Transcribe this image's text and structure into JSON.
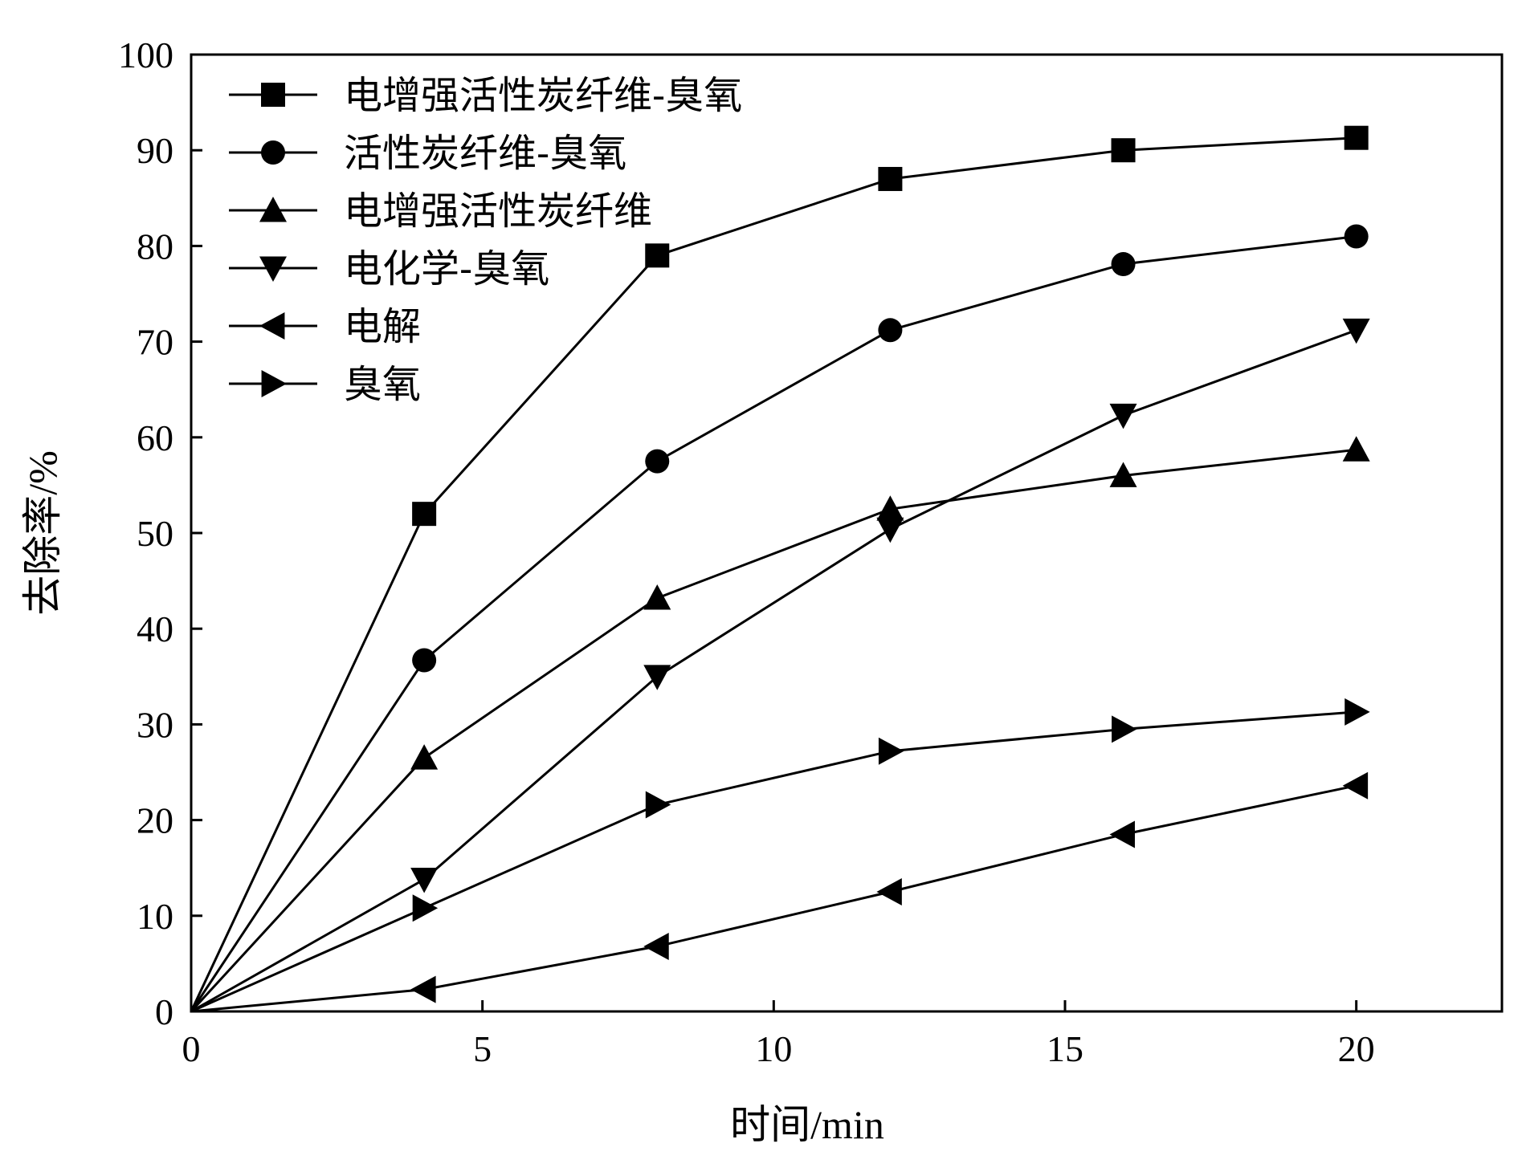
{
  "chart_data": {
    "type": "line",
    "xlabel": "时间/min",
    "ylabel": "去除率/%",
    "xlim": [
      0,
      22.5
    ],
    "ylim": [
      0,
      100
    ],
    "xticks": [
      0,
      5,
      10,
      15,
      20
    ],
    "yticks": [
      0,
      10,
      20,
      30,
      40,
      50,
      60,
      70,
      80,
      90,
      100
    ],
    "grid": false,
    "legend_position": "top-left",
    "x": [
      0,
      4,
      8,
      12,
      16,
      20
    ],
    "series": [
      {
        "name": "电增强活性炭纤维-臭氧",
        "marker": "square",
        "values": [
          0,
          52,
          79,
          87,
          90,
          91.3
        ]
      },
      {
        "name": "活性炭纤维-臭氧",
        "marker": "circle",
        "values": [
          0,
          36.7,
          57.5,
          71.2,
          78.1,
          81
        ]
      },
      {
        "name": "电增强活性炭纤维",
        "marker": "triangle-up",
        "values": [
          0,
          26.5,
          43.2,
          52.5,
          56,
          58.7
        ]
      },
      {
        "name": "电化学-臭氧",
        "marker": "triangle-down",
        "values": [
          0,
          13.8,
          35,
          50.4,
          62.3,
          71.2
        ]
      },
      {
        "name": "电解",
        "marker": "triangle-left",
        "values": [
          0,
          2.3,
          6.8,
          12.5,
          18.5,
          23.6
        ]
      },
      {
        "name": "臭氧",
        "marker": "triangle-right",
        "values": [
          0,
          10.8,
          21.6,
          27.2,
          29.5,
          31.3
        ]
      }
    ]
  }
}
